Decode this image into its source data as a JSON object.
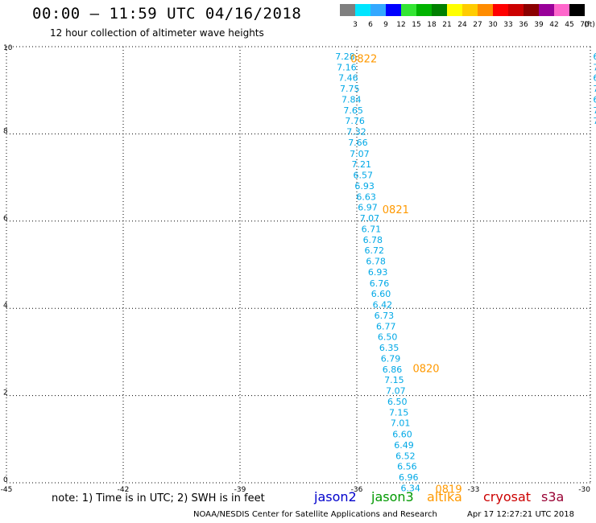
{
  "header": {
    "title": "00:00 – 11:59 UTC 04/16/2018",
    "subtitle": "12 hour collection of altimeter wave heights"
  },
  "color_scale": {
    "unit": "(ft)",
    "entries": [
      {
        "label": "3",
        "color": "#7f7f7f"
      },
      {
        "label": "6",
        "color": "#00e5ff"
      },
      {
        "label": "9",
        "color": "#33a8ff"
      },
      {
        "label": "12",
        "color": "#0000ff"
      },
      {
        "label": "15",
        "color": "#33e533"
      },
      {
        "label": "18",
        "color": "#00b300"
      },
      {
        "label": "21",
        "color": "#008000"
      },
      {
        "label": "24",
        "color": "#ffff00"
      },
      {
        "label": "27",
        "color": "#ffcc00"
      },
      {
        "label": "30",
        "color": "#ff8c00"
      },
      {
        "label": "33",
        "color": "#ff0000"
      },
      {
        "label": "36",
        "color": "#cc0000"
      },
      {
        "label": "39",
        "color": "#8b0000"
      },
      {
        "label": "42",
        "color": "#990099"
      },
      {
        "label": "45",
        "color": "#ff66cc"
      },
      {
        "label": "70",
        "color": "#000000"
      }
    ]
  },
  "chart_data": {
    "type": "scatter",
    "xlim": [
      -45,
      -30
    ],
    "ylim": [
      0,
      10
    ],
    "x_ticks": [
      "-45",
      "-42",
      "-39",
      "-36",
      "-33",
      "-30"
    ],
    "y_ticks": [
      "0",
      "2",
      "4",
      "6",
      "8",
      "10"
    ],
    "grid": true,
    "point_color": "#00a8e6",
    "points": [
      {
        "x": -36.3,
        "y": 9.78,
        "v": "7.28"
      },
      {
        "x": -36.26,
        "y": 9.53,
        "v": "7.16"
      },
      {
        "x": -36.22,
        "y": 9.29,
        "v": "7.46"
      },
      {
        "x": -36.18,
        "y": 9.04,
        "v": "7.75"
      },
      {
        "x": -36.14,
        "y": 8.79,
        "v": "7.84"
      },
      {
        "x": -36.09,
        "y": 8.54,
        "v": "7.65"
      },
      {
        "x": -36.05,
        "y": 8.3,
        "v": "7.76"
      },
      {
        "x": -36.01,
        "y": 8.05,
        "v": "7.32"
      },
      {
        "x": -35.97,
        "y": 7.8,
        "v": "7.66"
      },
      {
        "x": -35.93,
        "y": 7.55,
        "v": "7.07"
      },
      {
        "x": -35.88,
        "y": 7.31,
        "v": "7.21"
      },
      {
        "x": -35.84,
        "y": 7.06,
        "v": "6.57"
      },
      {
        "x": -35.8,
        "y": 6.81,
        "v": "6.93"
      },
      {
        "x": -35.76,
        "y": 6.56,
        "v": "6.63"
      },
      {
        "x": -35.72,
        "y": 6.32,
        "v": "6.97"
      },
      {
        "x": -35.67,
        "y": 6.07,
        "v": "7.07"
      },
      {
        "x": -35.63,
        "y": 5.82,
        "v": "6.71"
      },
      {
        "x": -35.59,
        "y": 5.57,
        "v": "6.78"
      },
      {
        "x": -35.55,
        "y": 5.33,
        "v": "6.72"
      },
      {
        "x": -35.51,
        "y": 5.08,
        "v": "6.78"
      },
      {
        "x": -35.46,
        "y": 4.83,
        "v": "6.93"
      },
      {
        "x": -35.42,
        "y": 4.58,
        "v": "6.76"
      },
      {
        "x": -35.38,
        "y": 4.34,
        "v": "6.60"
      },
      {
        "x": -35.34,
        "y": 4.09,
        "v": "6.42"
      },
      {
        "x": -35.3,
        "y": 3.84,
        "v": "6.73"
      },
      {
        "x": -35.25,
        "y": 3.59,
        "v": "6.77"
      },
      {
        "x": -35.21,
        "y": 3.35,
        "v": "6.50"
      },
      {
        "x": -35.17,
        "y": 3.1,
        "v": "6.35"
      },
      {
        "x": -35.13,
        "y": 2.85,
        "v": "6.79"
      },
      {
        "x": -35.09,
        "y": 2.6,
        "v": "6.86"
      },
      {
        "x": -35.04,
        "y": 2.36,
        "v": "7.15"
      },
      {
        "x": -35.0,
        "y": 2.11,
        "v": "7.07"
      },
      {
        "x": -34.96,
        "y": 1.86,
        "v": "6.50"
      },
      {
        "x": -34.92,
        "y": 1.61,
        "v": "7.15"
      },
      {
        "x": -34.88,
        "y": 1.37,
        "v": "7.01"
      },
      {
        "x": -34.83,
        "y": 1.12,
        "v": "6.60"
      },
      {
        "x": -34.79,
        "y": 0.87,
        "v": "6.49"
      },
      {
        "x": -34.75,
        "y": 0.62,
        "v": "6.52"
      },
      {
        "x": -34.71,
        "y": 0.38,
        "v": "6.56"
      },
      {
        "x": -34.67,
        "y": 0.13,
        "v": "6.96"
      },
      {
        "x": -34.62,
        "y": -0.12,
        "v": "6.34"
      }
    ],
    "time_color": "#ff9900",
    "time_labels": [
      {
        "x": -35.82,
        "y": 9.73,
        "v": "0822"
      },
      {
        "x": -35.0,
        "y": 6.27,
        "v": "0821"
      },
      {
        "x": -34.22,
        "y": 2.63,
        "v": "0820"
      },
      {
        "x": -33.64,
        "y": -0.14,
        "v": "0819"
      }
    ],
    "edge_points": [
      {
        "x": -29.93,
        "y": 9.78,
        "v": "6"
      },
      {
        "x": -29.93,
        "y": 9.53,
        "v": "7"
      },
      {
        "x": -29.93,
        "y": 9.29,
        "v": "6"
      },
      {
        "x": -29.93,
        "y": 9.04,
        "v": "7"
      },
      {
        "x": -29.93,
        "y": 8.79,
        "v": "6"
      },
      {
        "x": -29.93,
        "y": 8.54,
        "v": "7"
      },
      {
        "x": -29.93,
        "y": 8.3,
        "v": "7"
      }
    ]
  },
  "footer": {
    "note": "note: 1) Time is in UTC; 2) SWH is in feet",
    "legend": [
      {
        "label": "jason2",
        "color": "#0000cc"
      },
      {
        "label": "jason3",
        "color": "#009900"
      },
      {
        "label": "altika",
        "color": "#ff9900"
      },
      {
        "label": "cryosat",
        "color": "#cc0000"
      },
      {
        "label": "s3a",
        "color": "#990033"
      }
    ],
    "credit": "NOAA/NESDIS Center for Satellite Applications and Research",
    "timestamp": "Apr 17 12:27:21 UTC 2018"
  }
}
